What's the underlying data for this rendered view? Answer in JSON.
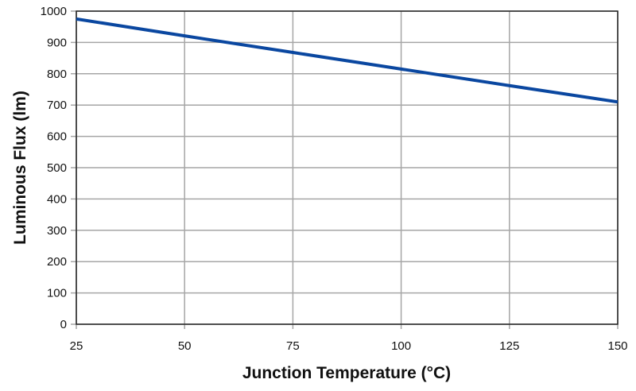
{
  "chart_data": {
    "type": "line",
    "title": "",
    "xlabel": "Junction Temperature (°C)",
    "ylabel": "Luminous Flux (lm)",
    "xlim": [
      25,
      150
    ],
    "ylim": [
      0,
      1000
    ],
    "xticks": [
      25,
      50,
      75,
      100,
      125,
      150
    ],
    "yticks": [
      0,
      100,
      200,
      300,
      400,
      500,
      600,
      700,
      800,
      900,
      1000
    ],
    "grid": true,
    "series": [
      {
        "name": "Luminous Flux",
        "color": "#0a47a0",
        "x": [
          25,
          50,
          75,
          100,
          125,
          150
        ],
        "y": [
          975,
          921,
          868,
          815,
          762,
          710
        ]
      }
    ]
  }
}
